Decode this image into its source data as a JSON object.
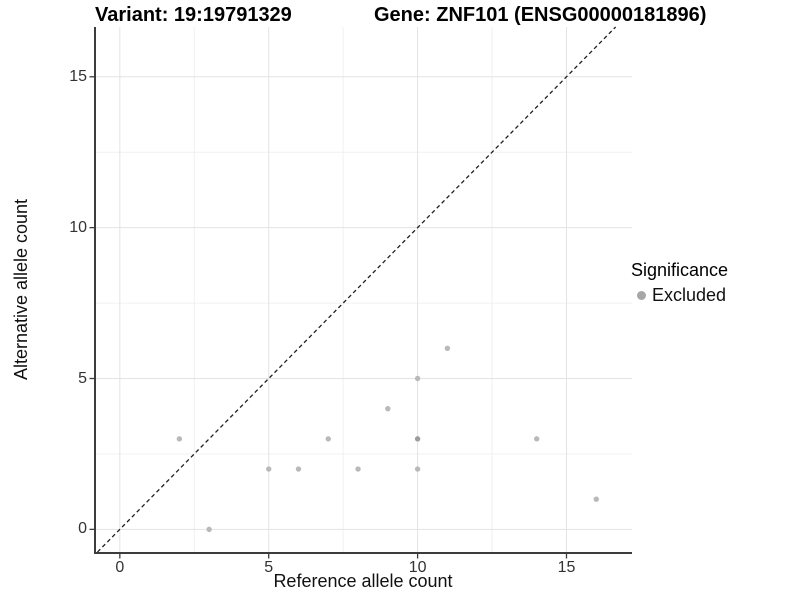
{
  "chart_data": {
    "type": "scatter",
    "title_left": "Variant: 19:19791329",
    "title_right": "Gene: ZNF101 (ENSG00000181896)",
    "xlabel": "Reference allele count",
    "ylabel": "Alternative allele count",
    "x_ticks": [
      0,
      5,
      10,
      15
    ],
    "y_ticks": [
      0,
      5,
      10,
      15
    ],
    "x_minor_ticks": [
      2.5,
      7.5,
      12.5
    ],
    "y_minor_ticks": [
      2.5,
      7.5,
      12.5
    ],
    "xlim": [
      -0.8,
      17.2
    ],
    "ylim": [
      -0.75,
      16.65
    ],
    "grid": "major+minor",
    "identity_line": {
      "style": "dashed",
      "slope": 1,
      "intercept": 0,
      "color": "#1f1f1f"
    },
    "series": [
      {
        "name": "Excluded",
        "color": "#b9b9b9",
        "points": [
          [
            2,
            3
          ],
          [
            3,
            0
          ],
          [
            5,
            2
          ],
          [
            6,
            2
          ],
          [
            7,
            3
          ],
          [
            8,
            2
          ],
          [
            9,
            4
          ],
          [
            10,
            2
          ],
          [
            10,
            3
          ],
          [
            10,
            5
          ],
          [
            11,
            6
          ],
          [
            14,
            3
          ],
          [
            16,
            1
          ]
        ]
      }
    ],
    "overplotted_points": [
      [
        10,
        3
      ]
    ],
    "overplot_color": "#9c9c9c",
    "legend": {
      "title": "Significance",
      "position": "right",
      "entries": [
        {
          "label": "Excluded",
          "color": "#a6a6a6"
        }
      ]
    },
    "colors": {
      "grid_major": "#e3e3e3",
      "grid_minor": "#f0f0f0",
      "axis_line": "#3c3c3c",
      "tick_label": "#333333"
    }
  }
}
